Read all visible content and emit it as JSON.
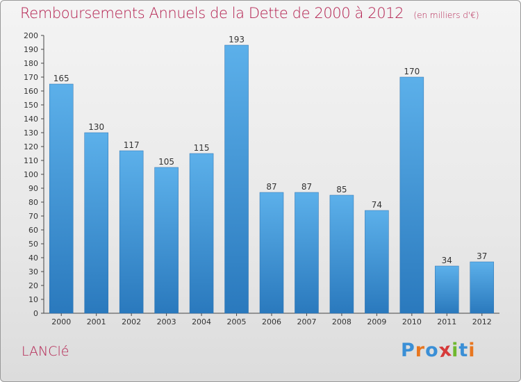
{
  "header": {
    "title": "Remboursements Annuels de la Dette de 2000 à 2012",
    "subtitle": "(en milliers d'€)"
  },
  "footer": {
    "commune": "LANClé",
    "logo": "Proxiti"
  },
  "colors": {
    "title": "#b3204f",
    "bar_light": "#5aaee8",
    "bar_dark": "#2a79bd",
    "logo": [
      "#3a8fd6",
      "#e8761f",
      "#3a8fd6",
      "#d63a3a",
      "#6fb82e",
      "#3a8fd6",
      "#e8761f"
    ]
  },
  "chart_data": {
    "type": "bar",
    "categories": [
      "2000",
      "2001",
      "2002",
      "2003",
      "2004",
      "2005",
      "2006",
      "2007",
      "2008",
      "2009",
      "2010",
      "2011",
      "2012"
    ],
    "values": [
      165,
      130,
      117,
      105,
      115,
      193,
      87,
      87,
      85,
      74,
      170,
      34,
      37
    ],
    "ylim": [
      0,
      200
    ],
    "ytick_step": 10,
    "grid": false,
    "data_labels": true
  }
}
